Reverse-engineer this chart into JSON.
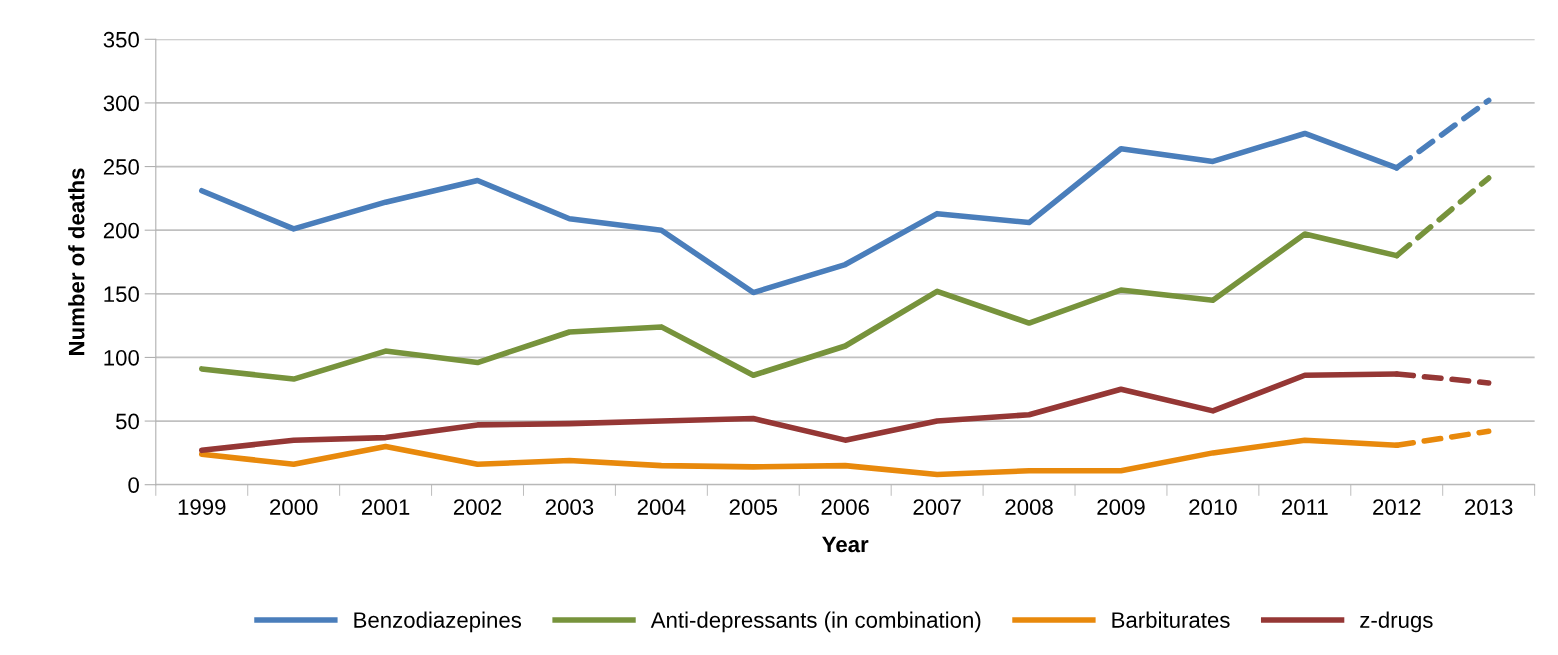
{
  "chart_data": {
    "type": "line",
    "xlabel": "Year",
    "ylabel": "Number of deaths",
    "categories": [
      "1999",
      "2000",
      "2001",
      "2002",
      "2003",
      "2004",
      "2005",
      "2006",
      "2007",
      "2008",
      "2009",
      "2010",
      "2011",
      "2012",
      "2013"
    ],
    "series": [
      {
        "name": "Benzodiazepines",
        "color": "#4a7ebb",
        "values": [
          231,
          201,
          222,
          239,
          209,
          200,
          151,
          173,
          213,
          206,
          264,
          254,
          276,
          249,
          null
        ]
      },
      {
        "name": "Anti-depressants (in combination)",
        "color": "#77933c",
        "values": [
          91,
          83,
          105,
          96,
          120,
          124,
          86,
          109,
          152,
          127,
          153,
          145,
          197,
          180,
          null
        ]
      },
      {
        "name": "Barbiturates",
        "color": "#e8890c",
        "values": [
          24,
          16,
          30,
          16,
          19,
          15,
          14,
          15,
          8,
          11,
          11,
          25,
          35,
          31,
          null
        ]
      },
      {
        "name": "z-drugs",
        "color": "#953735",
        "values": [
          27,
          35,
          37,
          47,
          48,
          50,
          52,
          35,
          50,
          55,
          75,
          58,
          86,
          87,
          null
        ]
      },
      {
        "color": "#4a7ebb",
        "line_style": "dashed",
        "values": [
          null,
          null,
          null,
          null,
          null,
          null,
          null,
          null,
          null,
          null,
          null,
          null,
          null,
          249,
          302
        ]
      },
      {
        "color": "#77933c",
        "line_style": "dashed",
        "values": [
          null,
          null,
          null,
          null,
          null,
          null,
          null,
          null,
          null,
          null,
          null,
          null,
          null,
          180,
          241
        ]
      },
      {
        "color": "#e8890c",
        "line_style": "dashed",
        "values": [
          null,
          null,
          null,
          null,
          null,
          null,
          null,
          null,
          null,
          null,
          null,
          null,
          null,
          31,
          42
        ]
      },
      {
        "color": "#953735",
        "line_style": "dashed",
        "values": [
          null,
          null,
          null,
          null,
          null,
          null,
          null,
          null,
          null,
          null,
          null,
          null,
          null,
          87,
          80
        ]
      }
    ],
    "ylim": [
      0,
      350
    ],
    "yticks": [
      0,
      50,
      100,
      150,
      200,
      250,
      300,
      350
    ],
    "grid": "y",
    "legend": "bottom",
    "line_style": "solid",
    "marker": "none"
  }
}
